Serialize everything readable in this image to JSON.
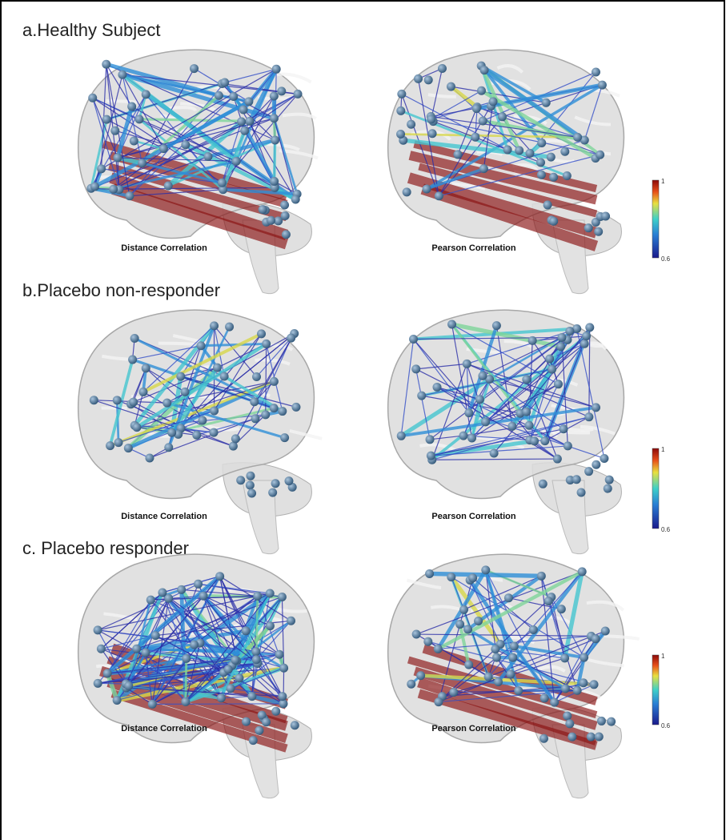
{
  "panels": [
    {
      "title": "a.Healthy Subject",
      "left_caption": "Distance Correlation",
      "right_caption": "Pearson Correlation",
      "colorbar": {
        "max": "1",
        "min": "0.6"
      }
    },
    {
      "title": "b.Placebo non-responder",
      "left_caption": "Distance Correlation",
      "right_caption": "Pearson Correlation",
      "colorbar": {
        "max": "1",
        "min": "0.6"
      }
    },
    {
      "title": "c. Placebo responder",
      "left_caption": "Distance Correlation",
      "right_caption": "Pearson Correlation",
      "colorbar": {
        "max": "1",
        "min": "0.6"
      }
    }
  ]
}
